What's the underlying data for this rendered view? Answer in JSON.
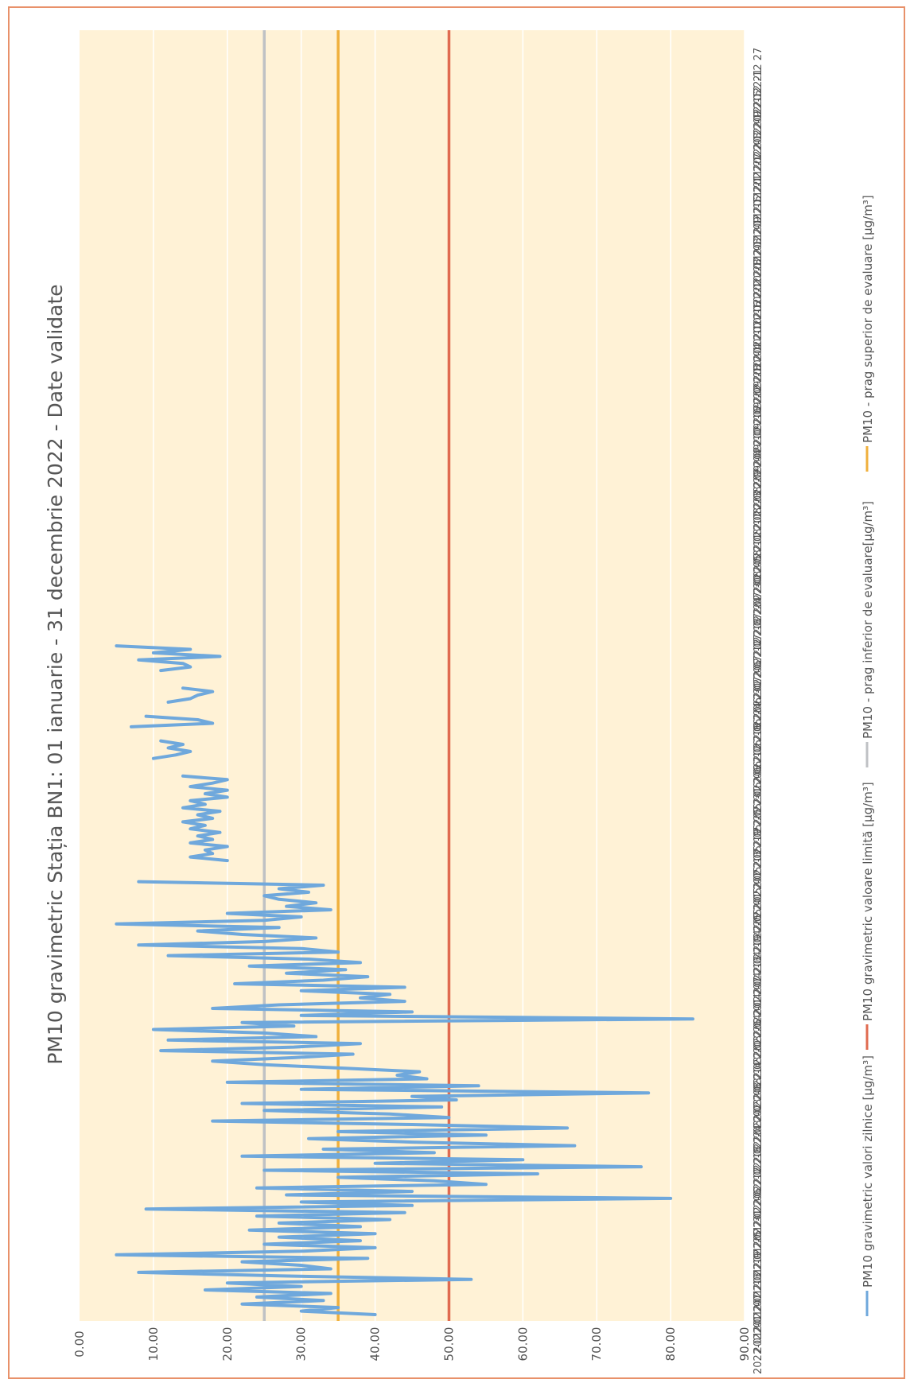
{
  "chart_data": {
    "type": "line",
    "title": "PM10 gravimetric Stația BN1: 01 ianuarie - 31 decembrie 2022 - Date validate",
    "ylim": [
      0,
      90
    ],
    "y_ticks": [
      "0.00",
      "10.00",
      "20.00",
      "30.00",
      "40.00",
      "50.00",
      "60.00",
      "70.00",
      "80.00",
      "90.00"
    ],
    "x_range": [
      "2022-01-01",
      "2022-12-31"
    ],
    "x_ticks": [
      "2022-01 01",
      "2022-01 07",
      "2022-01 13",
      "2022-01 19",
      "2022-01 25",
      "2022-01 31",
      "2022-02 06",
      "2022-02 12",
      "2022-02 18",
      "2022-02 24",
      "2022-03 02",
      "2022-03 08",
      "2022-03 14",
      "2022-03 20",
      "2022-03 26",
      "2022-04 01",
      "2022-04 07",
      "2022-04 13",
      "2022-04 19",
      "2022-04 25",
      "2022-05 01",
      "2022-05 07",
      "2022-05 13",
      "2022-05 19",
      "2022-05 25",
      "2022-05 31",
      "2022-06 06",
      "2022-06 12",
      "2022-06 18",
      "2022-06 24",
      "2022-06 30",
      "2022-07 06",
      "2022-07 12",
      "2022-07 18",
      "2022-07 24",
      "2022-07 30",
      "2022-08 05",
      "2022-08 11",
      "2022-08 17",
      "2022-08 23",
      "2022-08 29",
      "2022-09 04",
      "2022-09 10",
      "2022-09 16",
      "2022-09 22",
      "2022-09 28",
      "2022-10 04",
      "2022-10 10",
      "2022-10 16",
      "2022-10 22",
      "2022-10 28",
      "2022-11 03",
      "2022-11 09",
      "2022-11 15",
      "2022-11 21",
      "2022-11 27",
      "2022-12 03",
      "2022-12 09",
      "2022-12 15",
      "2022-12 21",
      "2022-12 27"
    ],
    "grid": true,
    "legend_position": "bottom",
    "series": [
      {
        "name": "PM10 gravimetric valori zilnice [µg/m³]",
        "color": "#6fa8dc",
        "segments": [
          [
            [
              "2022-01-01",
              40
            ],
            [
              "2022-01-02",
              30
            ],
            [
              "2022-01-03",
              35
            ],
            [
              "2022-01-04",
              22
            ],
            [
              "2022-01-05",
              33
            ],
            [
              "2022-01-06",
              24
            ],
            [
              "2022-01-07",
              34
            ],
            [
              "2022-01-08",
              17
            ],
            [
              "2022-01-09",
              30
            ],
            [
              "2022-01-10",
              20
            ],
            [
              "2022-01-11",
              53
            ],
            [
              "2022-01-12",
              27
            ],
            [
              "2022-01-13",
              8
            ],
            [
              "2022-01-14",
              34
            ],
            [
              "2022-01-15",
              30
            ],
            [
              "2022-01-16",
              22
            ],
            [
              "2022-01-17",
              39
            ],
            [
              "2022-01-18",
              5
            ],
            [
              "2022-01-19",
              30
            ],
            [
              "2022-01-20",
              40
            ],
            [
              "2022-01-21",
              25
            ],
            [
              "2022-01-22",
              38
            ],
            [
              "2022-01-23",
              27
            ],
            [
              "2022-01-24",
              40
            ],
            [
              "2022-01-25",
              23
            ],
            [
              "2022-01-26",
              38
            ],
            [
              "2022-01-27",
              27
            ],
            [
              "2022-01-28",
              42
            ],
            [
              "2022-01-29",
              24
            ],
            [
              "2022-01-30",
              44
            ],
            [
              "2022-01-31",
              9
            ],
            [
              "2022-02-01",
              45
            ],
            [
              "2022-02-02",
              30
            ],
            [
              "2022-02-03",
              80
            ],
            [
              "2022-02-04",
              28
            ],
            [
              "2022-02-05",
              45
            ],
            [
              "2022-02-06",
              24
            ],
            [
              "2022-02-07",
              55
            ],
            [
              "2022-02-08",
              48
            ],
            [
              "2022-02-09",
              35
            ],
            [
              "2022-02-10",
              62
            ],
            [
              "2022-02-11",
              25
            ],
            [
              "2022-02-12",
              76
            ],
            [
              "2022-02-13",
              40
            ],
            [
              "2022-02-14",
              60
            ],
            [
              "2022-02-15",
              22
            ],
            [
              "2022-02-16",
              48
            ],
            [
              "2022-02-17",
              33
            ],
            [
              "2022-02-18",
              67
            ],
            [
              "2022-02-19",
              45
            ],
            [
              "2022-02-20",
              31
            ],
            [
              "2022-02-21",
              55
            ],
            [
              "2022-02-22",
              35
            ],
            [
              "2022-02-23",
              66
            ],
            [
              "2022-02-24",
              45
            ],
            [
              "2022-02-25",
              18
            ],
            [
              "2022-02-26",
              50
            ],
            [
              "2022-02-27",
              42
            ],
            [
              "2022-02-28",
              25
            ],
            [
              "2022-03-01",
              49
            ],
            [
              "2022-03-02",
              22
            ],
            [
              "2022-03-03",
              51
            ],
            [
              "2022-03-04",
              45
            ],
            [
              "2022-03-05",
              77
            ],
            [
              "2022-03-06",
              30
            ],
            [
              "2022-03-07",
              54
            ],
            [
              "2022-03-08",
              20
            ],
            [
              "2022-03-09",
              47
            ],
            [
              "2022-03-10",
              43
            ],
            [
              "2022-03-11",
              46
            ],
            [
              "2022-03-12",
              36
            ],
            [
              "2022-03-13",
              25
            ],
            [
              "2022-03-14",
              18
            ],
            [
              "2022-03-15",
              29
            ],
            [
              "2022-03-16",
              37
            ],
            [
              "2022-03-17",
              11
            ],
            [
              "2022-03-18",
              29
            ],
            [
              "2022-03-19",
              38
            ],
            [
              "2022-03-20",
              12
            ],
            [
              "2022-03-21",
              32
            ],
            [
              "2022-03-22",
              25
            ],
            [
              "2022-03-23",
              10
            ],
            [
              "2022-03-24",
              29
            ],
            [
              "2022-03-25",
              22
            ],
            [
              "2022-03-26",
              83
            ],
            [
              "2022-03-27",
              30
            ],
            [
              "2022-03-28",
              45
            ],
            [
              "2022-03-29",
              18
            ],
            [
              "2022-03-30",
              27
            ],
            [
              "2022-03-31",
              44
            ],
            [
              "2022-04-01",
              38
            ],
            [
              "2022-04-02",
              42
            ],
            [
              "2022-04-03",
              30
            ],
            [
              "2022-04-04",
              44
            ],
            [
              "2022-04-05",
              21
            ],
            [
              "2022-04-06",
              33
            ],
            [
              "2022-04-07",
              39
            ],
            [
              "2022-04-08",
              28
            ],
            [
              "2022-04-09",
              36
            ],
            [
              "2022-04-10",
              23
            ],
            [
              "2022-04-11",
              38
            ],
            [
              "2022-04-12",
              31
            ],
            [
              "2022-04-13",
              12
            ],
            [
              "2022-04-14",
              35
            ],
            [
              "2022-04-15",
              30
            ],
            [
              "2022-04-16",
              8
            ],
            [
              "2022-04-17",
              25
            ],
            [
              "2022-04-18",
              32
            ],
            [
              "2022-04-19",
              22
            ],
            [
              "2022-04-20",
              16
            ],
            [
              "2022-04-21",
              27
            ],
            [
              "2022-04-22",
              5
            ],
            [
              "2022-04-23",
              25
            ],
            [
              "2022-04-24",
              30
            ],
            [
              "2022-04-25",
              20
            ],
            [
              "2022-04-26",
              34
            ],
            [
              "2022-04-27",
              28
            ],
            [
              "2022-04-28",
              32
            ],
            [
              "2022-04-29",
              27
            ],
            [
              "2022-04-30",
              25
            ],
            [
              "2022-05-01",
              31
            ],
            [
              "2022-05-02",
              27
            ],
            [
              "2022-05-03",
              33
            ],
            [
              "2022-05-04",
              8
            ]
          ],
          [
            [
              "2022-05-10",
              20
            ],
            [
              "2022-05-11",
              15
            ],
            [
              "2022-05-12",
              18
            ],
            [
              "2022-05-13",
              17
            ],
            [
              "2022-05-14",
              20
            ],
            [
              "2022-05-15",
              15
            ],
            [
              "2022-05-16",
              18
            ],
            [
              "2022-05-17",
              16
            ],
            [
              "2022-05-18",
              19
            ],
            [
              "2022-05-19",
              15
            ],
            [
              "2022-05-20",
              17
            ],
            [
              "2022-05-21",
              14
            ],
            [
              "2022-05-22",
              18
            ],
            [
              "2022-05-23",
              16
            ],
            [
              "2022-05-24",
              19
            ],
            [
              "2022-05-25",
              14
            ],
            [
              "2022-05-26",
              17
            ],
            [
              "2022-05-27",
              15
            ],
            [
              "2022-05-28",
              20
            ],
            [
              "2022-05-29",
              17
            ],
            [
              "2022-05-30",
              20
            ],
            [
              "2022-05-31",
              15
            ],
            [
              "2022-06-01",
              18
            ],
            [
              "2022-06-02",
              20
            ],
            [
              "2022-06-03",
              14
            ]
          ],
          [
            [
              "2022-06-08",
              10
            ],
            [
              "2022-06-09",
              13
            ],
            [
              "2022-06-10",
              15
            ],
            [
              "2022-06-11",
              12
            ],
            [
              "2022-06-12",
              14
            ],
            [
              "2022-06-13",
              11
            ]
          ],
          [
            [
              "2022-06-17",
              7
            ],
            [
              "2022-06-18",
              18
            ],
            [
              "2022-06-19",
              16
            ],
            [
              "2022-06-20",
              9
            ]
          ],
          [
            [
              "2022-06-24",
              12
            ],
            [
              "2022-06-25",
              15
            ],
            [
              "2022-06-26",
              16
            ],
            [
              "2022-06-27",
              18
            ],
            [
              "2022-06-28",
              14
            ]
          ],
          [
            [
              "2022-07-03",
              11
            ],
            [
              "2022-07-04",
              15
            ],
            [
              "2022-07-05",
              14
            ],
            [
              "2022-07-06",
              8
            ],
            [
              "2022-07-07",
              19
            ],
            [
              "2022-07-08",
              10
            ],
            [
              "2022-07-09",
              15
            ],
            [
              "2022-07-10",
              5
            ]
          ]
        ]
      },
      {
        "name": "PM10 gravimetric valoare limită [µg/m³]",
        "color": "#e06b50",
        "constant": 50
      },
      {
        "name": "PM10 - prag inferior de evaluare[µg/m³]",
        "color": "#bfc1c4",
        "constant": 25
      },
      {
        "name": "PM10 - prag superior de evaluare [µg/m³]",
        "color": "#f0b03c",
        "constant": 35
      }
    ]
  }
}
